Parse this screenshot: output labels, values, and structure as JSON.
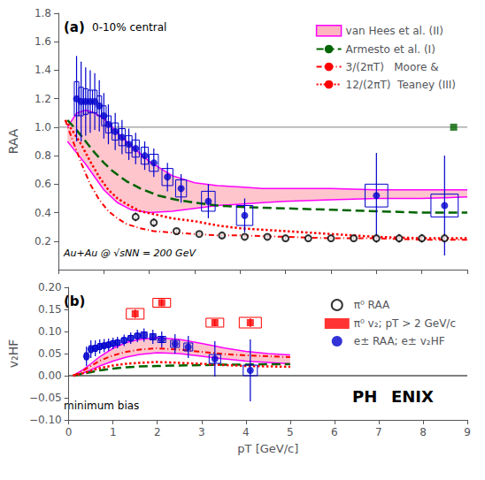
{
  "chart_data": [
    {
      "type": "line",
      "title": "(a)",
      "annotations": [
        "0-10% central",
        "Au+Au @ √sNN = 200 GeV"
      ],
      "ylabel": "RAA",
      "xlim": [
        0,
        9
      ],
      "xticks": [
        0,
        1,
        2,
        3,
        4,
        5,
        6,
        7,
        8,
        9
      ],
      "ylim": [
        0,
        1.8
      ],
      "yticks": [
        0.2,
        0.4,
        0.6,
        0.8,
        {
          "value": 1.0,
          "label": "1.0"
        },
        1.2,
        1.4,
        1.6,
        1.8
      ],
      "tick_labels": "y",
      "grid": false,
      "legend": "upper right",
      "hline": {
        "value": 1.0,
        "color": "gray"
      },
      "series": [
        {
          "name": "van Hees et al. (II)",
          "type": "band",
          "color": "#FFB6C1",
          "edge_color": "magenta",
          "x": [
            0.2,
            0.4,
            0.6,
            0.8,
            1.0,
            1.3,
            1.6,
            2.0,
            2.5,
            3.0,
            3.5,
            4.0,
            4.5,
            5.0,
            6.0,
            7.0,
            8.0,
            9.0
          ],
          "upper": [
            1.0,
            1.1,
            1.12,
            1.1,
            1.06,
            0.96,
            0.87,
            0.76,
            0.66,
            0.61,
            0.59,
            0.58,
            0.57,
            0.57,
            0.57,
            0.56,
            0.56,
            0.56
          ],
          "lower": [
            0.9,
            0.82,
            0.74,
            0.65,
            0.56,
            0.47,
            0.42,
            0.4,
            0.41,
            0.43,
            0.45,
            0.46,
            0.47,
            0.48,
            0.49,
            0.5,
            0.5,
            0.51
          ]
        },
        {
          "name": "Armesto et al. (I)",
          "type": "line",
          "line_style": "dashed",
          "color": "#006400",
          "x": [
            0.2,
            0.4,
            0.6,
            0.8,
            1.0,
            1.2,
            1.5,
            1.8,
            2.2,
            2.6,
            3.0,
            3.5,
            4.0,
            5.0,
            6.0,
            7.0,
            8.0,
            9.0
          ],
          "values": [
            1.05,
            0.98,
            0.9,
            0.82,
            0.75,
            0.69,
            0.62,
            0.57,
            0.52,
            0.49,
            0.47,
            0.45,
            0.44,
            0.43,
            0.42,
            0.41,
            0.4,
            0.4
          ]
        },
        {
          "name": "3/(2πT)   Moore &",
          "type": "line",
          "line_style": "dashdot",
          "color": "#FF0000",
          "x": [
            0.15,
            0.3,
            0.5,
            0.7,
            0.9,
            1.1,
            1.3,
            1.5,
            1.8,
            2.1,
            2.5,
            3.0,
            3.5,
            4.0,
            5.0,
            6.0,
            7.0,
            8.0,
            9.0
          ],
          "values": [
            1.05,
            0.92,
            0.75,
            0.6,
            0.49,
            0.41,
            0.36,
            0.32,
            0.29,
            0.27,
            0.26,
            0.25,
            0.24,
            0.24,
            0.23,
            0.22,
            0.22,
            0.21,
            0.21
          ]
        },
        {
          "name": "12/(2πT)  Teaney (III)",
          "type": "line",
          "line_style": "dotted",
          "color": "#FF0000",
          "x": [
            0.15,
            0.3,
            0.5,
            0.7,
            0.9,
            1.1,
            1.3,
            1.5,
            1.8,
            2.1,
            2.5,
            3.0,
            3.5,
            4.0,
            5.0,
            6.0,
            7.0,
            8.0,
            9.0
          ],
          "values": [
            1.05,
            0.98,
            0.88,
            0.76,
            0.65,
            0.56,
            0.5,
            0.46,
            0.41,
            0.39,
            0.36,
            0.34,
            0.31,
            0.29,
            0.27,
            0.25,
            0.23,
            0.22,
            0.22
          ]
        },
        {
          "name": "π⁰ RAA",
          "type": "scatter",
          "marker": "open_circle",
          "color": "black",
          "x": [
            1.7,
            2.1,
            2.6,
            3.1,
            3.6,
            4.1,
            4.6,
            5.0,
            5.5,
            6.0,
            6.5,
            7.0,
            7.5,
            8.0,
            8.5
          ],
          "values": [
            0.37,
            0.33,
            0.27,
            0.25,
            0.24,
            0.23,
            0.23,
            0.22,
            0.22,
            0.22,
            0.22,
            0.22,
            0.22,
            0.22,
            0.22
          ],
          "yerr": [
            0.03,
            0.03,
            0.02,
            0.02,
            0.02,
            0.02,
            0.02,
            0.02,
            0.02,
            0.02,
            0.02,
            0.03,
            0.03,
            0.03,
            0.03
          ]
        },
        {
          "name": "e± RAA; e± v₂HF",
          "type": "scatter",
          "marker": "circle",
          "color": "#0000CD",
          "x": [
            0.4,
            0.5,
            0.6,
            0.7,
            0.8,
            0.9,
            1.0,
            1.1,
            1.25,
            1.4,
            1.55,
            1.7,
            1.9,
            2.1,
            2.4,
            2.7,
            3.3,
            4.1,
            7.0,
            8.5
          ],
          "values": [
            1.2,
            1.18,
            1.18,
            1.18,
            1.18,
            1.15,
            1.08,
            1.02,
            0.97,
            0.93,
            0.88,
            0.85,
            0.8,
            0.75,
            0.65,
            0.57,
            0.48,
            0.38,
            0.52,
            0.45
          ],
          "yerr": [
            0.3,
            0.28,
            0.24,
            0.22,
            0.2,
            0.18,
            0.16,
            0.14,
            0.13,
            0.12,
            0.11,
            0.11,
            0.1,
            0.1,
            0.1,
            0.1,
            0.12,
            0.12,
            0.3,
            0.35
          ],
          "box_h": [
            0.12,
            0.1,
            0.09,
            0.08,
            0.08,
            0.07,
            0.07,
            0.06,
            0.06,
            0.06,
            0.06,
            0.06,
            0.06,
            0.06,
            0.06,
            0.06,
            0.07,
            0.07,
            0.08,
            0.08
          ],
          "box_w": [
            0.05,
            0.05,
            0.05,
            0.05,
            0.05,
            0.05,
            0.05,
            0.06,
            0.07,
            0.07,
            0.07,
            0.08,
            0.08,
            0.1,
            0.12,
            0.12,
            0.15,
            0.18,
            0.25,
            0.3
          ]
        },
        {
          "type": "scatter",
          "marker": "square",
          "color": "#006400",
          "x": [
            8.7
          ],
          "values": [
            1.0
          ]
        }
      ]
    },
    {
      "type": "line",
      "title": "(b)",
      "annotations": [
        "minimum bias",
        "PH",
        "ENIX"
      ],
      "xlabel": "pT [GeV/c]",
      "ylabel": "v₂HF",
      "xlim": [
        0,
        9
      ],
      "xticks": [
        0,
        1,
        2,
        3,
        4,
        5,
        6,
        7,
        8,
        9
      ],
      "ylim": [
        -0.1,
        0.2
      ],
      "yticks": [
        {
          "value": -0.1,
          "label": "−0.10"
        },
        {
          "value": -0.05,
          "label": "−0.05"
        },
        {
          "value": 0,
          "label": "0.00"
        },
        0.05,
        {
          "value": 0.1,
          "label": "0.10"
        },
        0.15,
        {
          "value": 0.2,
          "label": "0.20"
        }
      ],
      "grid": false,
      "legend": "upper right",
      "hline": {
        "value": 0,
        "color": "black"
      },
      "series": [
        {
          "name": "van Hees et al. (II)",
          "type": "band",
          "color": "#FFB6C1",
          "edge_color": "magenta",
          "x": [
            0.1,
            0.3,
            0.5,
            0.7,
            1.0,
            1.3,
            1.6,
            2.0,
            2.5,
            3.0,
            3.5,
            4.0,
            4.5,
            5.0
          ],
          "upper": [
            0.0,
            0.012,
            0.027,
            0.043,
            0.062,
            0.075,
            0.082,
            0.086,
            0.082,
            0.073,
            0.063,
            0.055,
            0.05,
            0.047
          ],
          "lower": [
            0.0,
            0.005,
            0.013,
            0.022,
            0.033,
            0.042,
            0.048,
            0.052,
            0.05,
            0.044,
            0.038,
            0.033,
            0.03,
            0.027
          ]
        },
        {
          "name": "Armesto et al. (I)",
          "type": "line",
          "line_style": "dashed",
          "color": "#006400",
          "x": [
            0.1,
            0.3,
            0.5,
            0.7,
            1.0,
            1.3,
            1.6,
            2.0,
            2.5,
            3.0,
            3.5,
            4.0,
            4.5,
            5.0
          ],
          "values": [
            0.0,
            0.004,
            0.008,
            0.012,
            0.016,
            0.019,
            0.021,
            0.022,
            0.023,
            0.024,
            0.025,
            0.025,
            0.026,
            0.026
          ]
        },
        {
          "name": "3/(2πT)   Moore &",
          "type": "line",
          "line_style": "dashdot",
          "color": "#FF0000",
          "x": [
            0.1,
            0.3,
            0.5,
            0.7,
            1.0,
            1.3,
            1.6,
            2.0,
            2.5,
            3.0,
            3.5,
            4.0,
            4.5,
            5.0
          ],
          "values": [
            0.0,
            0.01,
            0.022,
            0.034,
            0.046,
            0.054,
            0.059,
            0.062,
            0.059,
            0.054,
            0.049,
            0.046,
            0.044,
            0.042
          ]
        },
        {
          "name": "12/(2πT)  Teaney (III)",
          "type": "line",
          "line_style": "dotted",
          "color": "#FF0000",
          "x": [
            0.1,
            0.3,
            0.5,
            0.7,
            1.0,
            1.3,
            1.6,
            2.0,
            2.5,
            3.0,
            3.5,
            4.0,
            4.5,
            5.0
          ],
          "values": [
            0.0,
            0.005,
            0.011,
            0.017,
            0.023,
            0.027,
            0.029,
            0.031,
            0.029,
            0.027,
            0.024,
            0.022,
            0.021,
            0.02
          ]
        },
        {
          "name": "π⁰ v₂; pT > 2 GeV/c",
          "type": "scatter",
          "marker": "square",
          "color": "#FF0000",
          "x": [
            1.5,
            2.1,
            3.3,
            4.1
          ],
          "values": [
            0.14,
            0.165,
            0.12,
            0.12
          ],
          "yerr": [
            0.01,
            0.008,
            0.008,
            0.01
          ],
          "box_h": [
            0.012,
            0.01,
            0.01,
            0.012
          ],
          "box_w": [
            0.2,
            0.2,
            0.2,
            0.25
          ]
        },
        {
          "name": "e± RAA; e± v₂HF",
          "type": "scatter",
          "marker": "circle",
          "color": "#0000CD",
          "x": [
            0.4,
            0.5,
            0.6,
            0.7,
            0.8,
            0.9,
            1.0,
            1.1,
            1.25,
            1.4,
            1.55,
            1.7,
            1.9,
            2.1,
            2.4,
            2.7,
            3.3,
            4.1
          ],
          "values": [
            0.044,
            0.06,
            0.062,
            0.066,
            0.068,
            0.07,
            0.073,
            0.075,
            0.08,
            0.085,
            0.09,
            0.092,
            0.088,
            0.082,
            0.072,
            0.065,
            0.038,
            0.012
          ],
          "yerr": [
            0.022,
            0.02,
            0.018,
            0.016,
            0.015,
            0.014,
            0.013,
            0.013,
            0.013,
            0.013,
            0.014,
            0.015,
            0.016,
            0.018,
            0.022,
            0.025,
            0.04,
            0.07
          ],
          "box_h": [
            0.008,
            0.008,
            0.007,
            0.007,
            0.006,
            0.006,
            0.006,
            0.006,
            0.006,
            0.006,
            0.006,
            0.007,
            0.007,
            0.007,
            0.008,
            0.009,
            0.01,
            0.012
          ],
          "box_w": [
            0.04,
            0.04,
            0.04,
            0.04,
            0.04,
            0.04,
            0.05,
            0.05,
            0.06,
            0.06,
            0.06,
            0.07,
            0.07,
            0.09,
            0.1,
            0.1,
            0.13,
            0.16
          ]
        }
      ]
    }
  ]
}
